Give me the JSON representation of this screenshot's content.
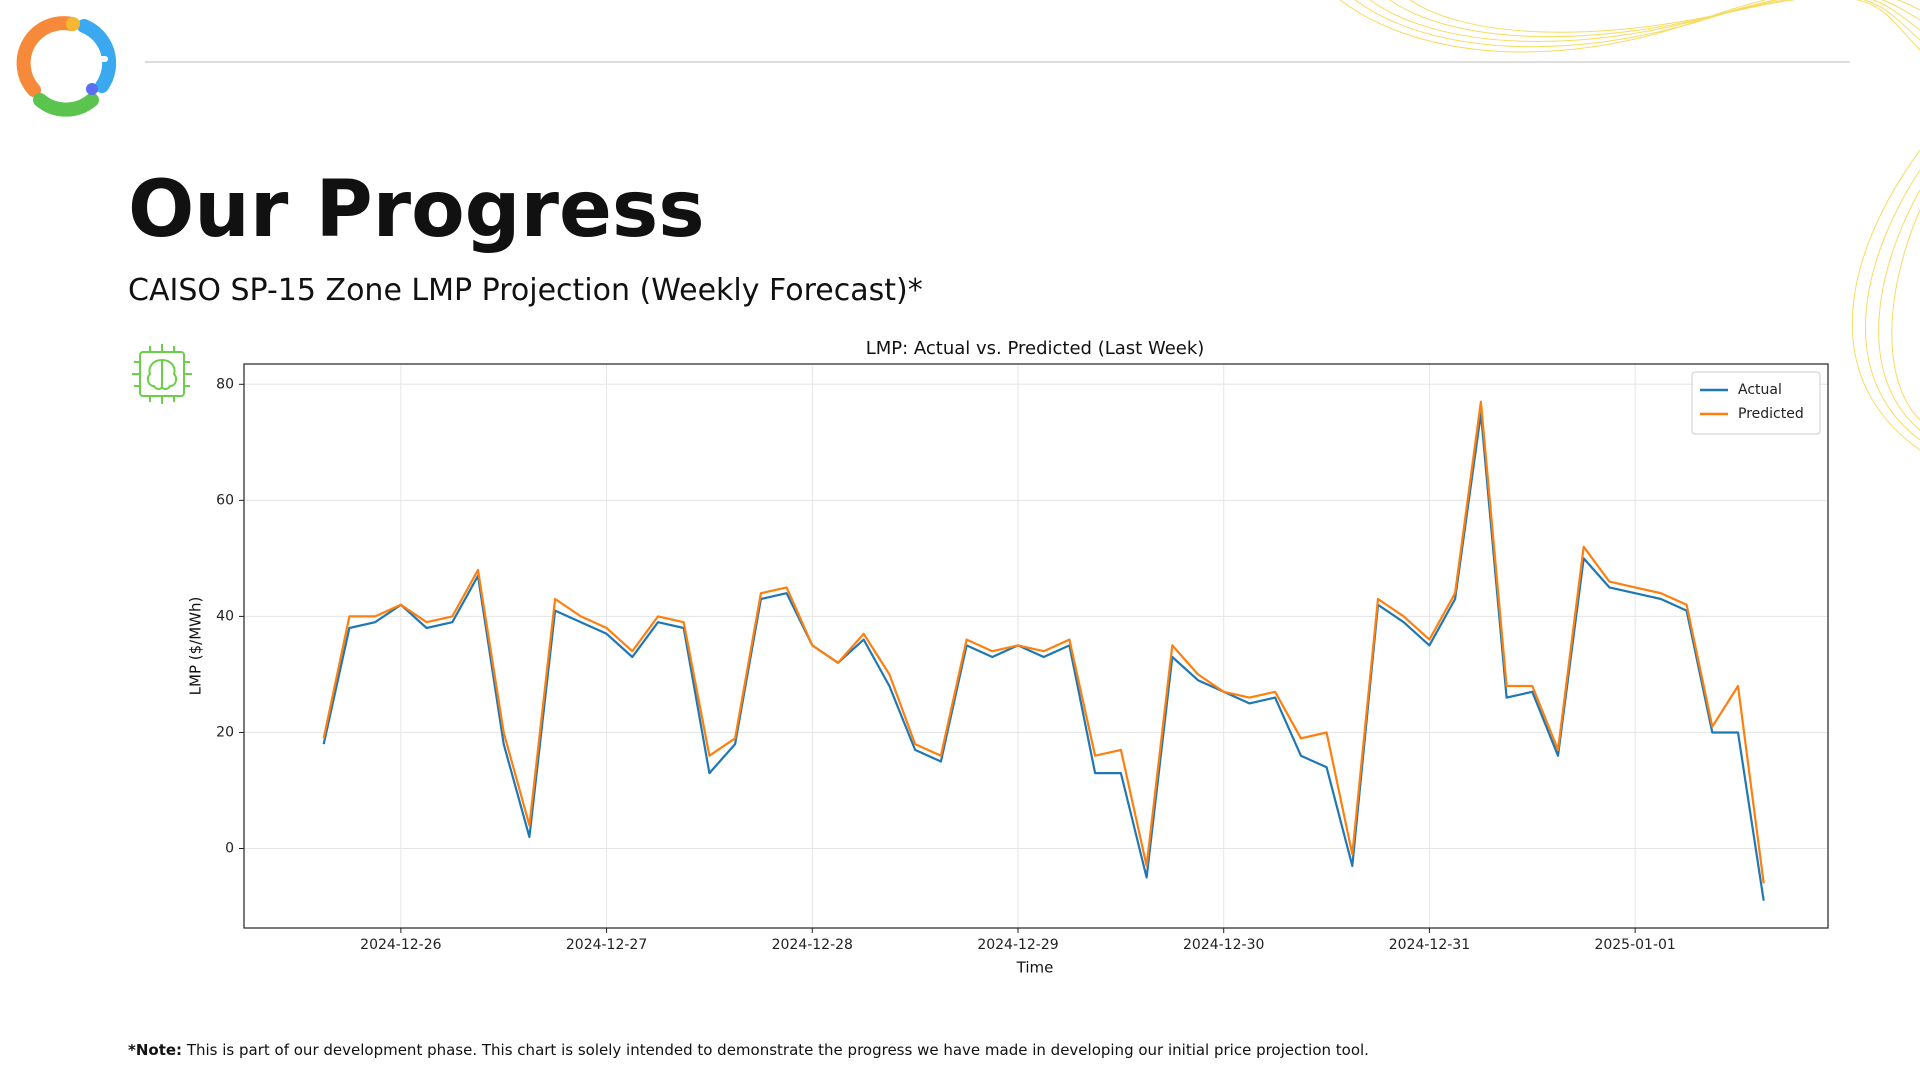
{
  "title": "Our Progress",
  "subtitle": "CAISO SP-15 Zone LMP Projection (Weekly Forecast)*",
  "footnote": {
    "label": "*Note:",
    "text": "This is part of our development phase. This chart is solely intended to demonstrate the progress we have made in developing our initial price projection tool."
  },
  "chart_data": {
    "type": "line",
    "title": "LMP: Actual vs. Predicted (Last Week)",
    "xlabel": "Time",
    "ylabel": "LMP ($/MWh)",
    "categories": [
      null,
      null,
      null,
      "2024-12-26",
      null,
      null,
      null,
      null,
      null,
      null,
      null,
      "2024-12-27",
      null,
      null,
      null,
      null,
      null,
      null,
      null,
      "2024-12-28",
      null,
      null,
      null,
      null,
      null,
      null,
      null,
      "2024-12-29",
      null,
      null,
      null,
      null,
      null,
      null,
      null,
      "2024-12-30",
      null,
      null,
      null,
      null,
      null,
      null,
      null,
      "2024-12-31",
      null,
      null,
      null,
      null,
      null,
      null,
      null,
      "2025-01-01",
      null,
      null,
      null,
      null,
      null
    ],
    "series": [
      {
        "name": "Actual",
        "color": "#1f77b4",
        "values": [
          18,
          38,
          39,
          42,
          38,
          39,
          47,
          18,
          2,
          41,
          39,
          37,
          33,
          39,
          38,
          13,
          18,
          43,
          44,
          35,
          32,
          36,
          28,
          17,
          15,
          35,
          33,
          35,
          33,
          35,
          13,
          13,
          -5,
          33,
          29,
          27,
          25,
          26,
          16,
          14,
          -3,
          42,
          39,
          35,
          43,
          75,
          26,
          27,
          16,
          50,
          45,
          44,
          43,
          41,
          20,
          20,
          -9
        ]
      },
      {
        "name": "Predicted",
        "color": "#ff7f0e",
        "values": [
          19,
          40,
          40,
          42,
          39,
          40,
          48,
          20,
          4,
          43,
          40,
          38,
          34,
          40,
          39,
          16,
          19,
          44,
          45,
          35,
          32,
          37,
          30,
          18,
          16,
          36,
          34,
          35,
          34,
          36,
          16,
          17,
          -3,
          35,
          30,
          27,
          26,
          27,
          19,
          20,
          -1,
          43,
          40,
          36,
          44,
          77,
          28,
          28,
          17,
          52,
          46,
          45,
          44,
          42,
          21,
          28,
          -6
        ]
      }
    ],
    "ylim": [
      -13.7,
      83.5
    ],
    "yticks": [
      0,
      20,
      40,
      60,
      80
    ],
    "grid": true,
    "legend": "upper right"
  }
}
